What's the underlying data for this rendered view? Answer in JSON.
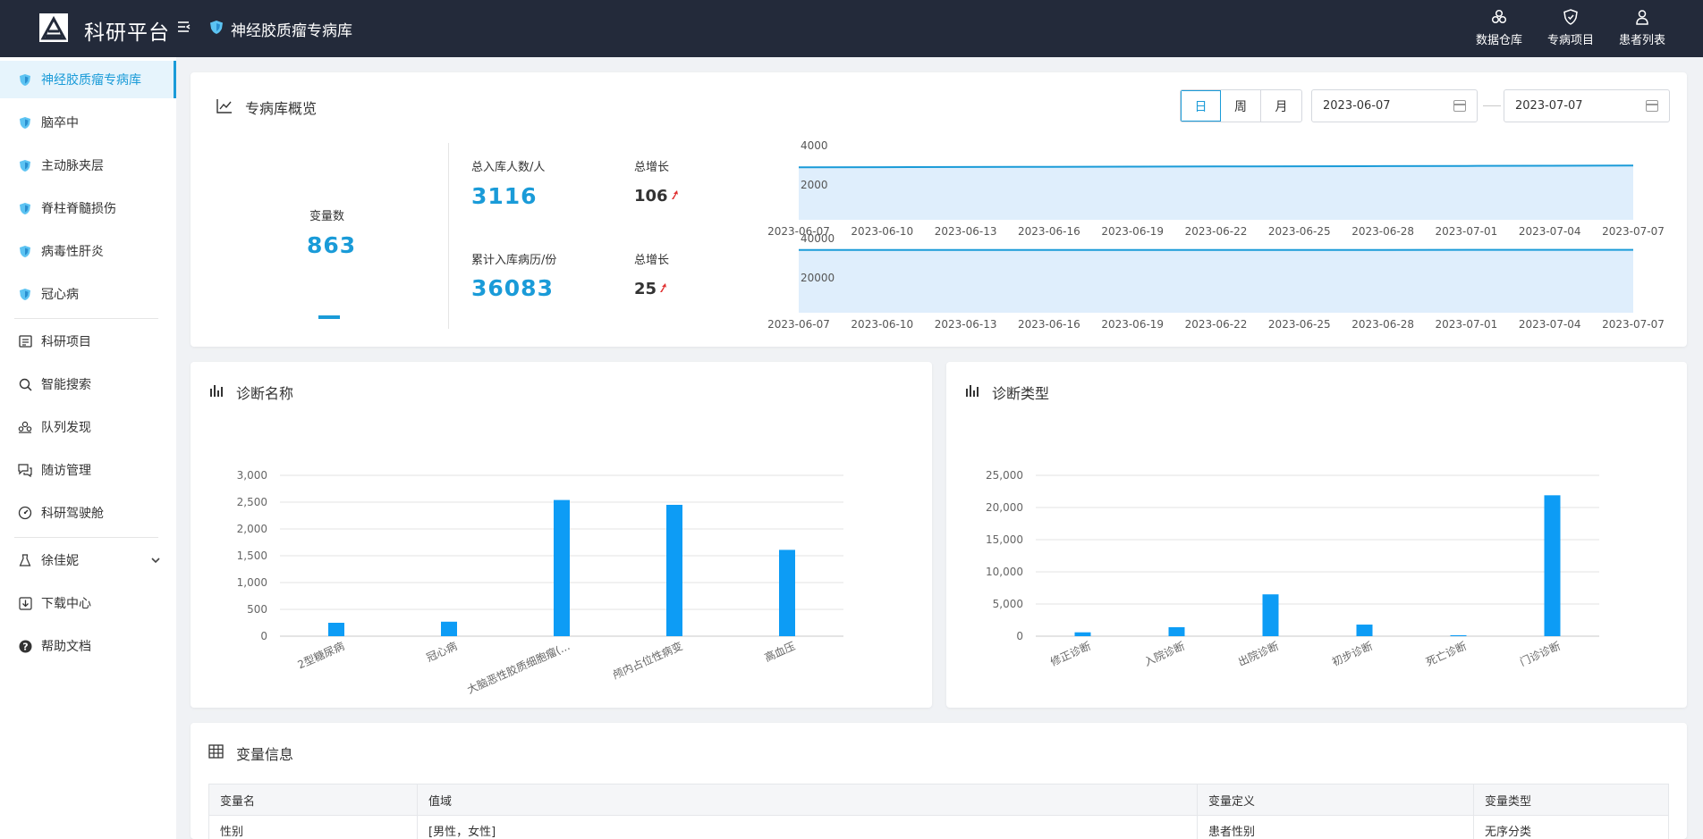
{
  "header": {
    "brand": "科研平台",
    "db_title": "神经胶质瘤专病库",
    "nav": [
      {
        "label": "数据仓库",
        "icon": "data-warehouse-icon"
      },
      {
        "label": "专病项目",
        "icon": "shield-icon"
      },
      {
        "label": "患者列表",
        "icon": "patient-icon"
      }
    ]
  },
  "sidebar": {
    "items": [
      {
        "label": "神经胶质瘤专病库",
        "icon": "shield-icon"
      },
      {
        "label": "脑卒中",
        "icon": "shield-icon"
      },
      {
        "label": "主动脉夹层",
        "icon": "shield-icon"
      },
      {
        "label": "脊柱脊髓损伤",
        "icon": "shield-icon"
      },
      {
        "label": "病毒性肝炎",
        "icon": "shield-icon"
      },
      {
        "label": "冠心病",
        "icon": "shield-icon"
      },
      {
        "label": "科研项目",
        "icon": "project-icon"
      },
      {
        "label": "智能搜索",
        "icon": "search-icon"
      },
      {
        "label": "队列发现",
        "icon": "cohort-icon"
      },
      {
        "label": "随访管理",
        "icon": "followup-icon"
      },
      {
        "label": "科研驾驶舱",
        "icon": "dashboard-icon"
      },
      {
        "label": "徐佳妮",
        "icon": "user-icon"
      },
      {
        "label": "下载中心",
        "icon": "download-icon"
      },
      {
        "label": "帮助文档",
        "icon": "help-icon"
      }
    ]
  },
  "overview": {
    "title": "专病库概览",
    "segments": [
      "日",
      "周",
      "月"
    ],
    "date_start": "2023-06-07",
    "date_end": "2023-07-07",
    "variables_label": "变量数",
    "variables_value": "863",
    "total_patients_label": "总入库人数/人",
    "total_patients_value": "3116",
    "patients_growth_label": "总增长",
    "patients_growth_value": "106",
    "total_records_label": "累计入库病历/份",
    "total_records_value": "36083",
    "records_growth_label": "总增长",
    "records_growth_value": "25",
    "colors": {
      "accent": "#1a9bd8",
      "up_arrow": "#e03030"
    }
  },
  "chart_data": [
    {
      "type": "area",
      "x": [
        "2023-06-07",
        "2023-06-10",
        "2023-06-13",
        "2023-06-16",
        "2023-06-19",
        "2023-06-22",
        "2023-06-25",
        "2023-06-28",
        "2023-07-01",
        "2023-07-04",
        "2023-07-07"
      ],
      "series": [
        {
          "values": [
            3010,
            3020,
            3030,
            3040,
            3050,
            3060,
            3070,
            3080,
            3090,
            3100,
            3116
          ]
        }
      ],
      "yticks": [
        "2000",
        "4000"
      ],
      "ylim": [
        0,
        4000
      ],
      "color": "#1a9bd8"
    },
    {
      "type": "area",
      "x": [
        "2023-06-07",
        "2023-06-10",
        "2023-06-13",
        "2023-06-16",
        "2023-06-19",
        "2023-06-22",
        "2023-06-25",
        "2023-06-28",
        "2023-07-01",
        "2023-07-04",
        "2023-07-07"
      ],
      "series": [
        {
          "values": [
            36058,
            36061,
            36063,
            36066,
            36068,
            36071,
            36073,
            36076,
            36078,
            36080,
            36083
          ]
        }
      ],
      "yticks": [
        "20000",
        "40000"
      ],
      "ylim": [
        0,
        40000
      ],
      "color": "#1a9bd8"
    },
    {
      "type": "bar",
      "title": "诊断名称",
      "categories": [
        "2型糖尿病",
        "冠心病",
        "大脑恶性胶质细胞瘤(...",
        "颅内占位性病变",
        "高血压"
      ],
      "values": [
        250,
        270,
        2540,
        2450,
        1610
      ],
      "yticks": [
        "0",
        "500",
        "1,000",
        "1,500",
        "2,000",
        "2,500",
        "3,000"
      ],
      "ylim": [
        0,
        3000
      ],
      "grid": true,
      "color": "#0d9cf5"
    },
    {
      "type": "bar",
      "title": "诊断类型",
      "categories": [
        "修正诊断",
        "入院诊断",
        "出院诊断",
        "初步诊断",
        "死亡诊断",
        "门诊诊断"
      ],
      "values": [
        600,
        1400,
        6500,
        1800,
        150,
        21900
      ],
      "yticks": [
        "0",
        "5,000",
        "10,000",
        "15,000",
        "20,000",
        "25,000"
      ],
      "ylim": [
        0,
        25000
      ],
      "grid": true,
      "color": "#0d9cf5"
    }
  ],
  "diag_name": {
    "title": "诊断名称"
  },
  "diag_type": {
    "title": "诊断类型"
  },
  "var_info": {
    "title": "变量信息",
    "columns": [
      "变量名",
      "值域",
      "变量定义",
      "变量类型"
    ],
    "rows": [
      [
        "性别",
        "[男性，女性]",
        "患者性别",
        "无序分类"
      ]
    ]
  }
}
